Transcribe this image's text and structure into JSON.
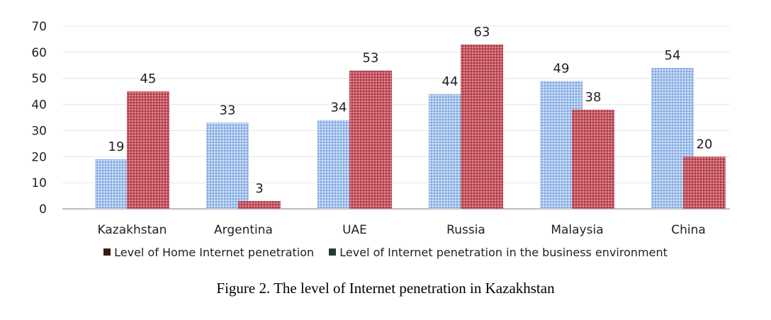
{
  "chart_data": {
    "type": "bar",
    "categories": [
      "Kazakhstan",
      "Argentina",
      "UAE",
      "Russia",
      "Malaysia",
      "China"
    ],
    "series": [
      {
        "name": "Level of Internet penetration in the business environment",
        "values": [
          19,
          33,
          34,
          44,
          49,
          54
        ],
        "color": "#9dbde8"
      },
      {
        "name": "Level of Home Internet penetration",
        "values": [
          45,
          3,
          53,
          63,
          38,
          20
        ],
        "color": "#c0505a"
      }
    ],
    "legend_order": [
      "Level of Home Internet penetration",
      "Level of Internet penetration in the business environment"
    ],
    "legend_swatch_colors": [
      "#3a1a14",
      "#1f3a3a"
    ],
    "yticks": [
      0,
      10,
      20,
      30,
      40,
      50,
      60,
      70
    ],
    "ylim": [
      0,
      70
    ],
    "grid": true,
    "legend_position": "bottom"
  },
  "caption": "Figure 2. The level of Internet penetration in Kazakhstan"
}
